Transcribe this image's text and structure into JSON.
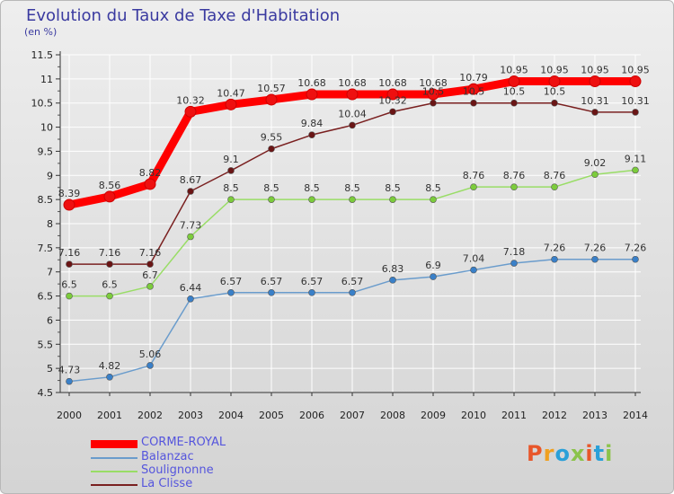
{
  "title": "Evolution du Taux de Taxe d'Habitation",
  "subtitle": "(en %)",
  "logo_text": "Proxiti",
  "logo_colors": [
    "#e8562a",
    "#f0a020",
    "#2aa0d8",
    "#8bc34a",
    "#e8562a",
    "#2aa0d8",
    "#8bc34a"
  ],
  "chart_data": {
    "type": "line",
    "x": [
      "2000",
      "2001",
      "2002",
      "2003",
      "2004",
      "2005",
      "2006",
      "2007",
      "2008",
      "2009",
      "2010",
      "2011",
      "2012",
      "2013",
      "2014"
    ],
    "ylim": [
      4.5,
      11.5
    ],
    "yticks": [
      "4.5",
      "5",
      "5.5",
      "6",
      "6.5",
      "7",
      "7.5",
      "8",
      "8.5",
      "9",
      "9.5",
      "10",
      "10.5",
      "11",
      "11.5"
    ],
    "grid": true,
    "legend_position": "bottom-left",
    "series": [
      {
        "name": "CORME-ROYAL",
        "color": "#ff0000",
        "dot_color": "#ee1010",
        "emphasis": true,
        "values": [
          8.39,
          8.56,
          8.82,
          10.32,
          10.47,
          10.57,
          10.68,
          10.68,
          10.68,
          10.68,
          10.79,
          10.95,
          10.95,
          10.95,
          10.95
        ],
        "labels": [
          "8.39",
          "8.56",
          "8.82",
          "10.32",
          "10.47",
          "10.57",
          "10.68",
          "10.68",
          "10.68",
          "10.68",
          "10.79",
          "10.95",
          "10.95",
          "10.95",
          "10.95"
        ]
      },
      {
        "name": "Balanzac",
        "color": "#6a9ccc",
        "dot_color": "#3a80c8",
        "values": [
          4.73,
          4.82,
          5.06,
          6.44,
          6.57,
          6.57,
          6.57,
          6.57,
          6.83,
          6.9,
          7.04,
          7.18,
          7.26,
          7.26,
          7.26
        ],
        "labels": [
          "4.73",
          "4.82",
          "5.06",
          "6.44",
          "6.57",
          "6.57",
          "6.57",
          "6.57",
          "6.83",
          "6.9",
          "7.04",
          "7.18",
          "7.26",
          "7.26",
          "7.26"
        ]
      },
      {
        "name": "Soulignonne",
        "color": "#99dd66",
        "dot_color": "#7ccc3c",
        "values": [
          6.5,
          6.5,
          6.7,
          7.73,
          8.5,
          8.5,
          8.5,
          8.5,
          8.5,
          8.5,
          8.76,
          8.76,
          8.76,
          9.02,
          9.11
        ],
        "labels": [
          "6.5",
          "6.5",
          "6.7",
          "7.73",
          "8.5",
          "8.5",
          "8.5",
          "8.5",
          "8.5",
          "8.5",
          "8.76",
          "8.76",
          "8.76",
          "9.02",
          "9.11"
        ]
      },
      {
        "name": "La Clisse",
        "color": "#7a2020",
        "dot_color": "#6a1515",
        "values": [
          7.16,
          7.16,
          7.16,
          8.67,
          9.1,
          9.55,
          9.84,
          10.04,
          10.32,
          10.5,
          10.5,
          10.5,
          10.5,
          10.31,
          10.31
        ],
        "labels": [
          "7.16",
          "7.16",
          "7.16",
          "8.67",
          "9.1",
          "9.55",
          "9.84",
          "10.04",
          "10.32",
          "10.5",
          "10.5",
          "10.5",
          "10.5",
          "10.31",
          "10.31"
        ]
      }
    ]
  }
}
